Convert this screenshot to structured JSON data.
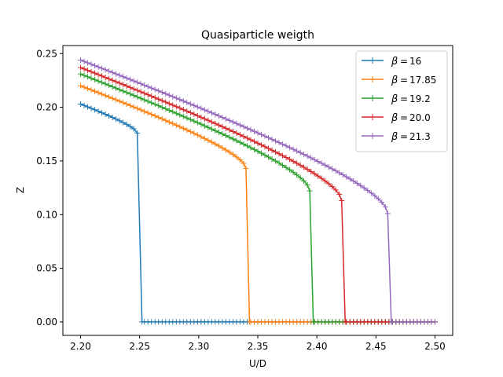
{
  "chart_data": {
    "type": "line",
    "title": "Quasiparticle weigth",
    "xlabel": "U/D",
    "ylabel": "Z",
    "xlim": [
      2.185,
      2.515
    ],
    "ylim": [
      -0.0125,
      0.2575
    ],
    "xticks": [
      2.2,
      2.25,
      2.3,
      2.35,
      2.4,
      2.45,
      2.5
    ],
    "xtick_labels": [
      "2.20",
      "2.25",
      "2.30",
      "2.35",
      "2.40",
      "2.45",
      "2.50"
    ],
    "yticks": [
      0.0,
      0.05,
      0.1,
      0.15,
      0.2,
      0.25
    ],
    "ytick_labels": [
      "0.00",
      "0.05",
      "0.10",
      "0.15",
      "0.20",
      "0.25"
    ],
    "grid": false,
    "legend_position": "top-right",
    "marker": "+",
    "series": [
      {
        "name": "β = 16",
        "legend_label": "16",
        "color": "#1f77b4",
        "z_start": 0.203,
        "z_drop": 0.176,
        "u_drop": 2.248,
        "u_zero": 2.252
      },
      {
        "name": "β = 17.85",
        "legend_label": "17.85",
        "color": "#ff7f0e",
        "z_start": 0.22,
        "z_drop": 0.143,
        "u_drop": 2.34,
        "u_zero": 2.343
      },
      {
        "name": "β = 19.2",
        "legend_label": "19.2",
        "color": "#2ca02c",
        "z_start": 0.231,
        "z_drop": 0.122,
        "u_drop": 2.394,
        "u_zero": 2.397
      },
      {
        "name": "β = 20.0",
        "legend_label": "20.0",
        "color": "#d62728",
        "z_start": 0.237,
        "z_drop": 0.113,
        "u_drop": 2.421,
        "u_zero": 2.424
      },
      {
        "name": "β = 21.3",
        "legend_label": "21.3",
        "color": "#9467bd",
        "z_start": 0.244,
        "z_drop": 0.101,
        "u_drop": 2.46,
        "u_zero": 2.463
      }
    ],
    "x_step": 0.003,
    "x_start": 2.2,
    "x_end": 2.5
  }
}
